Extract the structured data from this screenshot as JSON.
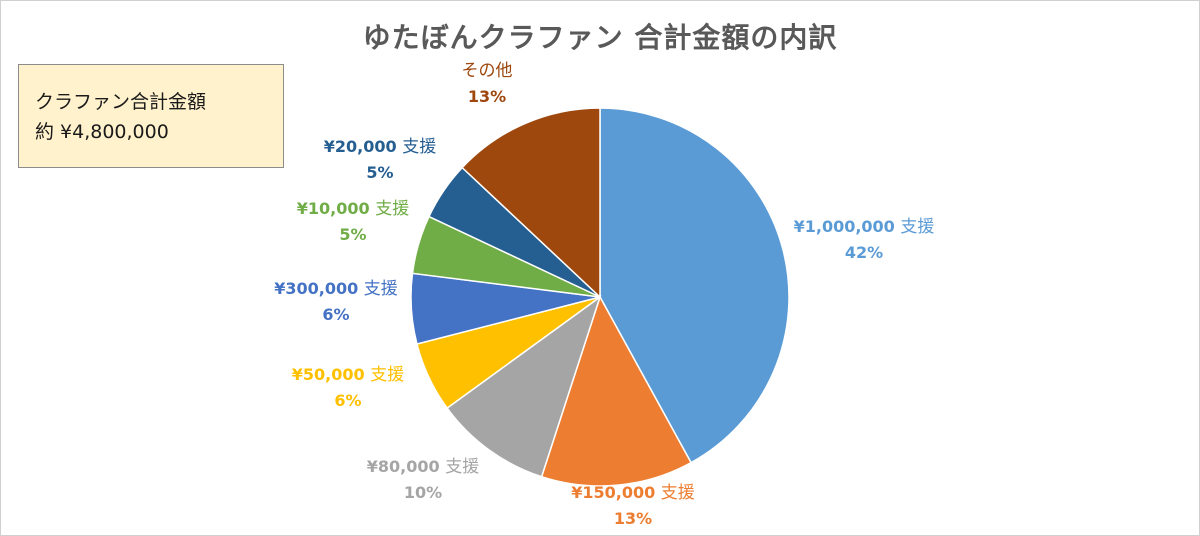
{
  "chart_data": {
    "type": "pie",
    "title": "ゆたぼんクラファン 合計金額の内訳",
    "slices": [
      {
        "amount": "¥1,000,000",
        "suffix": "支援",
        "percent": "42%",
        "value": 42,
        "color": "#5b9bd5"
      },
      {
        "amount": "¥150,000",
        "suffix": "支援",
        "percent": "13%",
        "value": 13,
        "color": "#ed7d31"
      },
      {
        "amount": "¥80,000",
        "suffix": "支援",
        "percent": "10%",
        "value": 10,
        "color": "#a5a5a5"
      },
      {
        "amount": "¥50,000",
        "suffix": "支援",
        "percent": "6%",
        "value": 6,
        "color": "#ffc000"
      },
      {
        "amount": "¥300,000",
        "suffix": "支援",
        "percent": "6%",
        "value": 6,
        "color": "#4472c4"
      },
      {
        "amount": "¥10,000",
        "suffix": "支援",
        "percent": "5%",
        "value": 5,
        "color": "#70ad47"
      },
      {
        "amount": "¥20,000",
        "suffix": "支援",
        "percent": "5%",
        "value": 5,
        "color": "#255e91"
      },
      {
        "amount": "",
        "suffix": "その他",
        "percent": "13%",
        "value": 13,
        "color": "#9e480e"
      }
    ]
  },
  "note": {
    "line1": "クラファン合計金額",
    "line2": "約 ¥4,800,000"
  }
}
